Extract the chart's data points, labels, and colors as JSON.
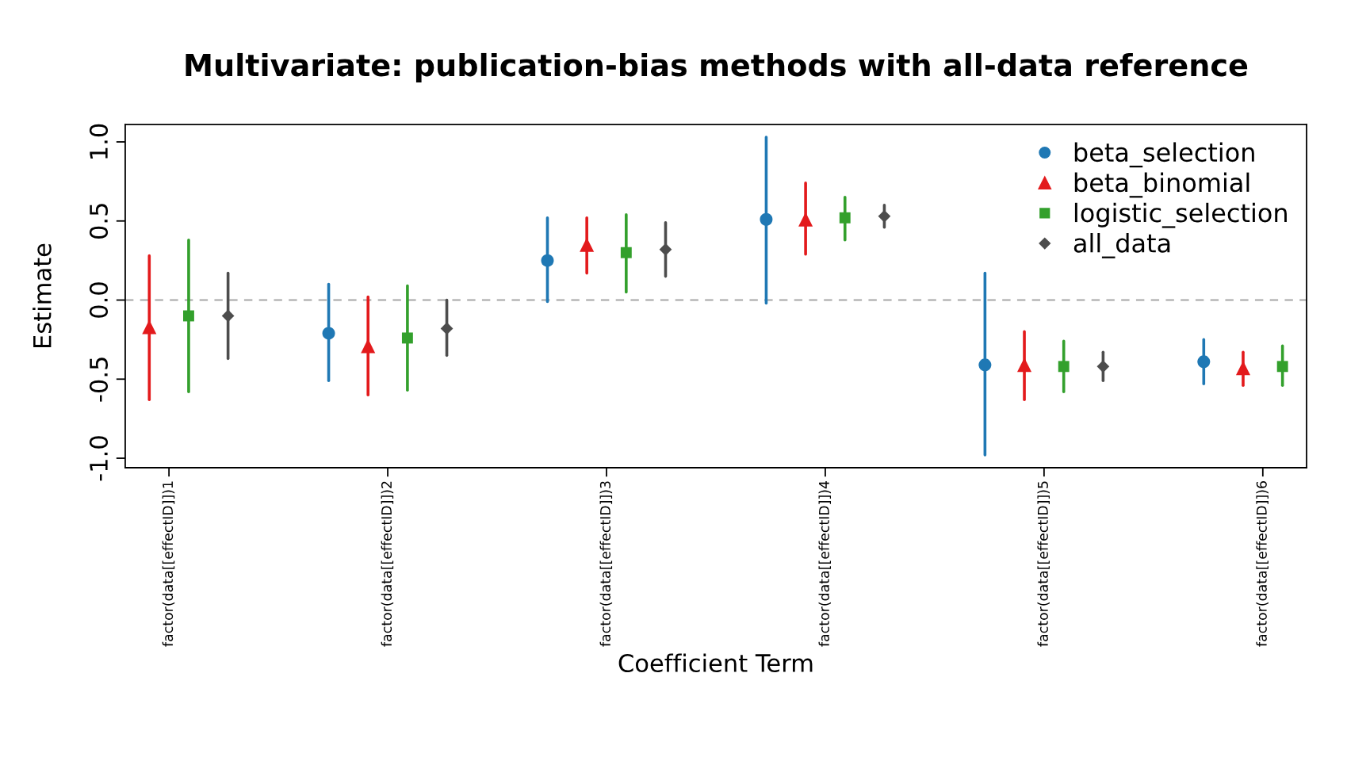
{
  "chart_data": {
    "type": "scatter",
    "title": "Multivariate: publication-bias methods with all-data reference",
    "xlabel": "Coefficient Term",
    "ylabel": "Estimate",
    "categories": [
      "factor(data[[effectID]])1",
      "factor(data[[effectID]])2",
      "factor(data[[effectID]])3",
      "factor(data[[effectID]])4",
      "factor(data[[effectID]])5",
      "factor(data[[effectID]])6"
    ],
    "ylim": [
      -1.06,
      1.11
    ],
    "yticks": [
      {
        "value": -1,
        "label": "-1.0"
      },
      -0.5,
      {
        "value": 0,
        "label": "0.0"
      },
      0.5,
      {
        "value": 1,
        "label": "1.0"
      }
    ],
    "grid": false,
    "legend": "top right",
    "ref_lines": [
      {
        "axis": "y",
        "value": 0,
        "color": "#a6a6a6",
        "line_style": "dashed"
      }
    ],
    "series": [
      {
        "name": "beta_selection",
        "color": "#1f78b4",
        "marker": "circle",
        "values": [
          null,
          -0.21,
          0.25,
          0.51,
          -0.41,
          -0.39
        ],
        "errors": [
          null,
          [
            -0.51,
            0.1
          ],
          [
            -0.01,
            0.52
          ],
          [
            -0.02,
            1.03
          ],
          [
            -0.98,
            0.17
          ],
          [
            -0.53,
            -0.25
          ]
        ]
      },
      {
        "name": "beta_binomial",
        "color": "#e31a1c",
        "marker": "triangle",
        "values": [
          -0.17,
          -0.29,
          0.35,
          0.51,
          -0.41,
          -0.43
        ],
        "errors": [
          [
            -0.63,
            0.28
          ],
          [
            -0.6,
            0.02
          ],
          [
            0.17,
            0.52
          ],
          [
            0.29,
            0.74
          ],
          [
            -0.63,
            -0.2
          ],
          [
            -0.54,
            -0.33
          ]
        ]
      },
      {
        "name": "logistic_selection",
        "color": "#33a02c",
        "marker": "square",
        "values": [
          -0.1,
          -0.24,
          0.3,
          0.52,
          -0.42,
          -0.42
        ],
        "errors": [
          [
            -0.58,
            0.38
          ],
          [
            -0.57,
            0.09
          ],
          [
            0.05,
            0.54
          ],
          [
            0.38,
            0.65
          ],
          [
            -0.58,
            -0.26
          ],
          [
            -0.54,
            -0.29
          ]
        ]
      },
      {
        "name": "all_data",
        "color": "#4d4d4d",
        "marker": "diamond",
        "values": [
          -0.1,
          -0.18,
          0.32,
          0.53,
          -0.42,
          null
        ],
        "errors": [
          [
            -0.37,
            0.17
          ],
          [
            -0.35,
            0.0
          ],
          [
            0.15,
            0.49
          ],
          [
            0.46,
            0.6
          ],
          [
            -0.51,
            -0.33
          ],
          null
        ]
      }
    ]
  }
}
